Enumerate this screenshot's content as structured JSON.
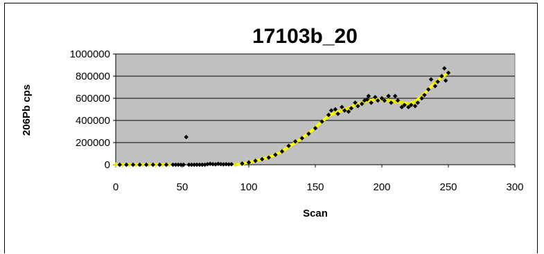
{
  "chart_data": {
    "type": "scatter",
    "title": "17103b_20",
    "xlabel": "Scan",
    "ylabel": "206Pb cps",
    "xlim": [
      0,
      300
    ],
    "ylim": [
      0,
      1000000
    ],
    "x_ticks": [
      "0",
      "50",
      "100",
      "150",
      "200",
      "250",
      "300"
    ],
    "y_ticks": [
      "0",
      "200000",
      "400000",
      "600000",
      "800000",
      "1000000"
    ],
    "grid": "horizontal",
    "legend": "none",
    "colors": {
      "plot_bg": "#c0c0c0",
      "points": "#000000",
      "fit_line": "#ffff00",
      "fit_marker": "#e6e600"
    },
    "series": [
      {
        "type": "scatter",
        "points": [
          [
            3,
            0
          ],
          [
            8,
            0
          ],
          [
            13,
            0
          ],
          [
            18,
            0
          ],
          [
            23,
            0
          ],
          [
            28,
            0
          ],
          [
            33,
            0
          ],
          [
            38,
            0
          ],
          [
            43,
            0
          ],
          [
            45,
            0
          ],
          [
            47,
            0
          ],
          [
            49,
            0
          ],
          [
            51,
            0
          ],
          [
            53,
            250000
          ],
          [
            55,
            0
          ],
          [
            57,
            0
          ],
          [
            59,
            0
          ],
          [
            61,
            0
          ],
          [
            63,
            0
          ],
          [
            65,
            0
          ],
          [
            67,
            0
          ],
          [
            69,
            5000
          ],
          [
            71,
            8000
          ],
          [
            73,
            5000
          ],
          [
            75,
            3000
          ],
          [
            77,
            8000
          ],
          [
            79,
            5000
          ],
          [
            81,
            3000
          ],
          [
            83,
            5000
          ],
          [
            85,
            3000
          ],
          [
            87,
            5000
          ],
          [
            95,
            10000
          ],
          [
            100,
            20000
          ],
          [
            105,
            35000
          ],
          [
            110,
            50000
          ],
          [
            115,
            65000
          ],
          [
            120,
            90000
          ],
          [
            125,
            120000
          ],
          [
            130,
            170000
          ],
          [
            135,
            210000
          ],
          [
            140,
            240000
          ],
          [
            145,
            280000
          ],
          [
            150,
            330000
          ],
          [
            155,
            390000
          ],
          [
            160,
            450000
          ],
          [
            162,
            490000
          ],
          [
            165,
            500000
          ],
          [
            167,
            460000
          ],
          [
            170,
            520000
          ],
          [
            172,
            490000
          ],
          [
            175,
            480000
          ],
          [
            177,
            510000
          ],
          [
            180,
            560000
          ],
          [
            182,
            530000
          ],
          [
            185,
            550000
          ],
          [
            187,
            580000
          ],
          [
            189,
            590000
          ],
          [
            190,
            620000
          ],
          [
            192,
            560000
          ],
          [
            195,
            610000
          ],
          [
            197,
            580000
          ],
          [
            200,
            600000
          ],
          [
            202,
            580000
          ],
          [
            205,
            620000
          ],
          [
            207,
            560000
          ],
          [
            210,
            620000
          ],
          [
            212,
            580000
          ],
          [
            215,
            520000
          ],
          [
            217,
            540000
          ],
          [
            220,
            520000
          ],
          [
            222,
            540000
          ],
          [
            225,
            530000
          ],
          [
            227,
            560000
          ],
          [
            230,
            600000
          ],
          [
            232,
            630000
          ],
          [
            235,
            680000
          ],
          [
            237,
            770000
          ],
          [
            240,
            710000
          ],
          [
            242,
            750000
          ],
          [
            245,
            800000
          ],
          [
            247,
            870000
          ],
          [
            248,
            760000
          ],
          [
            250,
            830000
          ]
        ]
      },
      {
        "type": "line",
        "points": [
          [
            0,
            0
          ],
          [
            5,
            0
          ],
          [
            10,
            0
          ],
          [
            15,
            0
          ],
          [
            20,
            0
          ],
          [
            25,
            0
          ],
          [
            30,
            0
          ],
          [
            35,
            0
          ],
          [
            40,
            0
          ],
          [
            90,
            0
          ],
          [
            95,
            8000
          ],
          [
            100,
            20000
          ],
          [
            105,
            35000
          ],
          [
            110,
            50000
          ],
          [
            115,
            68000
          ],
          [
            120,
            90000
          ],
          [
            125,
            120000
          ],
          [
            130,
            160000
          ],
          [
            135,
            200000
          ],
          [
            140,
            240000
          ],
          [
            145,
            285000
          ],
          [
            150,
            335000
          ],
          [
            155,
            390000
          ],
          [
            160,
            440000
          ],
          [
            165,
            470000
          ],
          [
            170,
            490000
          ],
          [
            175,
            510000
          ],
          [
            180,
            540000
          ],
          [
            185,
            560000
          ],
          [
            190,
            580000
          ],
          [
            195,
            590000
          ],
          [
            200,
            590000
          ],
          [
            205,
            580000
          ],
          [
            210,
            570000
          ],
          [
            215,
            560000
          ],
          [
            220,
            550000
          ],
          [
            225,
            570000
          ],
          [
            230,
            620000
          ],
          [
            235,
            680000
          ],
          [
            240,
            740000
          ],
          [
            245,
            790000
          ],
          [
            250,
            830000
          ]
        ]
      }
    ]
  }
}
